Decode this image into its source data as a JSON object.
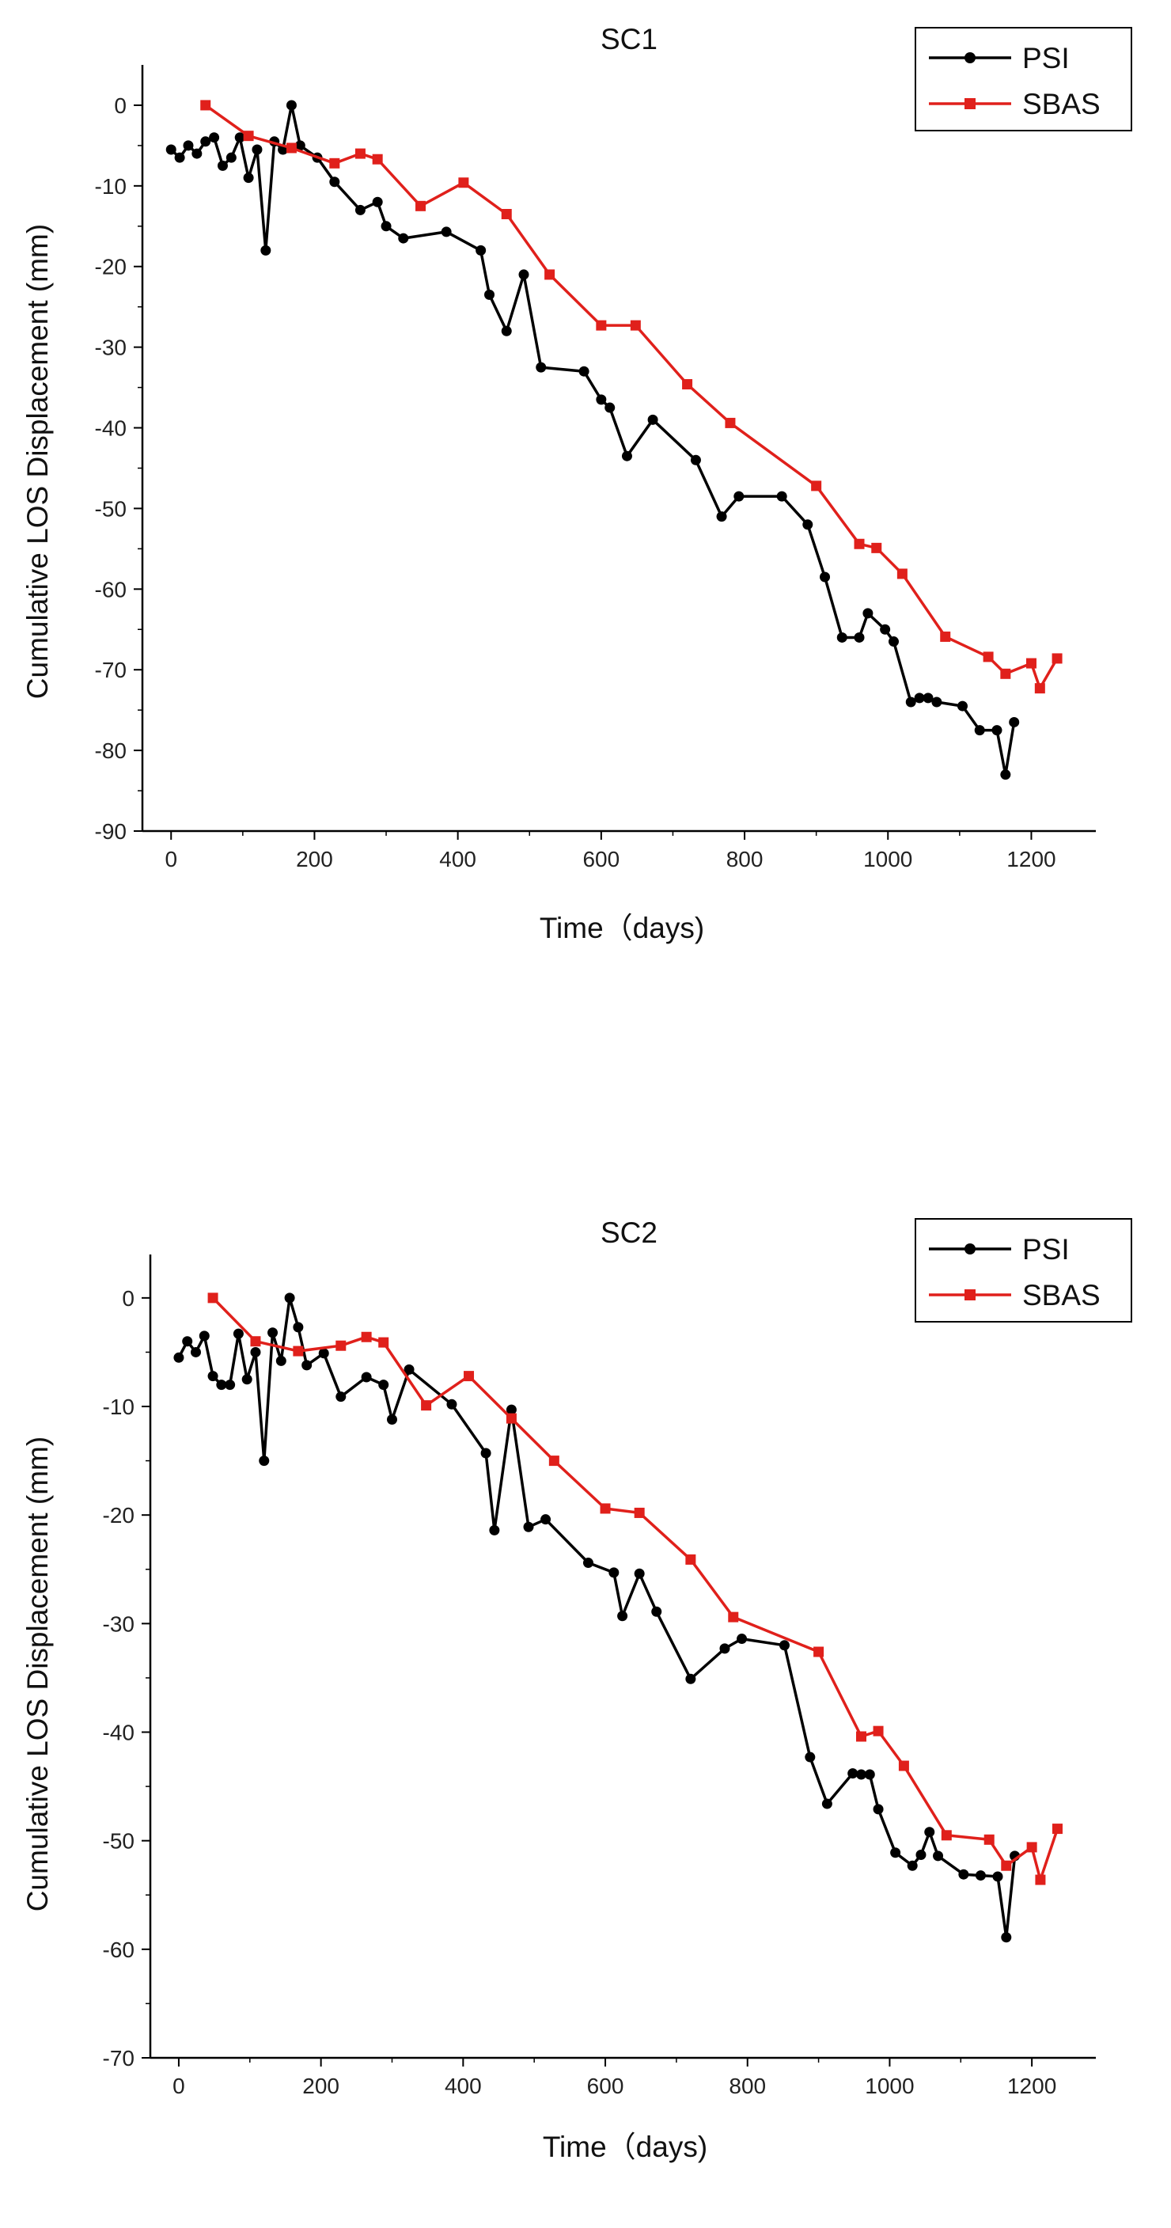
{
  "chart_data": [
    {
      "type": "line",
      "title": "SC1",
      "xlabel": "Time（days)",
      "ylabel": "Cumulative LOS Displacement (mm)",
      "xlim": [
        -40,
        1290
      ],
      "ylim": [
        -90,
        5
      ],
      "xticks": [
        0,
        200,
        400,
        600,
        800,
        1000,
        1200
      ],
      "yticks": [
        0,
        -10,
        -20,
        -30,
        -40,
        -50,
        -60,
        -70,
        -80,
        -90
      ],
      "legend_position": "top-right",
      "series": [
        {
          "name": "PSI",
          "color": "#000000",
          "marker": "circle",
          "x": [
            0,
            12,
            24,
            36,
            48,
            60,
            72,
            84,
            96,
            108,
            120,
            132,
            144,
            156,
            168,
            180,
            204,
            228,
            264,
            288,
            300,
            324,
            384,
            432,
            444,
            468,
            492,
            516,
            576,
            600,
            612,
            636,
            672,
            732,
            768,
            792,
            852,
            888,
            912,
            936,
            960,
            972,
            996,
            1008,
            1032,
            1044,
            1056,
            1068,
            1104,
            1128,
            1152,
            1164,
            1176
          ],
          "y": [
            -5.5,
            -6.5,
            -5,
            -6,
            -4.5,
            -4,
            -7.5,
            -6.5,
            -4,
            -9,
            -5.5,
            -18,
            -4.5,
            -5.5,
            0,
            -5,
            -6.5,
            -9.5,
            -13,
            -12,
            -15,
            -16.5,
            -15.7,
            -18,
            -23.5,
            -28,
            -21,
            -32.5,
            -33,
            -36.5,
            -37.5,
            -43.5,
            -39,
            -44,
            -51,
            -48.5,
            -48.5,
            -52,
            -58.5,
            -66,
            -66,
            -63,
            -65,
            -66.5,
            -74,
            -73.5,
            -73.5,
            -74,
            -74.5,
            -77.5,
            -77.5,
            -83,
            -76.5
          ]
        },
        {
          "name": "SBAS",
          "color": "#e0201b",
          "marker": "square",
          "x": [
            48,
            108,
            168,
            228,
            264,
            288,
            348,
            408,
            468,
            528,
            600,
            648,
            720,
            780,
            900,
            960,
            984,
            1020,
            1080,
            1140,
            1164,
            1200,
            1212,
            1236
          ],
          "y": [
            0,
            -3.8,
            -5.3,
            -7.2,
            -6,
            -6.7,
            -12.5,
            -9.6,
            -13.5,
            -21,
            -27.3,
            -27.3,
            -34.6,
            -39.4,
            -47.2,
            -54.4,
            -54.9,
            -58.1,
            -65.9,
            -68.4,
            -70.5,
            -69.2,
            -72.3,
            -68.6
          ]
        }
      ]
    },
    {
      "type": "line",
      "title": "SC2",
      "xlabel": "Time（days)",
      "ylabel": "Cumulative LOS Displacement (mm)",
      "xlim": [
        -40,
        1290
      ],
      "ylim": [
        -70,
        4
      ],
      "xticks": [
        0,
        200,
        400,
        600,
        800,
        1000,
        1200
      ],
      "yticks": [
        0,
        -10,
        -20,
        -30,
        -40,
        -50,
        -60,
        -70
      ],
      "legend_position": "top-right",
      "series": [
        {
          "name": "PSI",
          "color": "#000000",
          "marker": "circle",
          "x": [
            0,
            12,
            24,
            36,
            48,
            60,
            72,
            84,
            96,
            108,
            120,
            132,
            144,
            156,
            168,
            180,
            204,
            228,
            264,
            288,
            300,
            324,
            384,
            432,
            444,
            468,
            492,
            516,
            576,
            612,
            624,
            648,
            672,
            720,
            768,
            792,
            852,
            888,
            912,
            948,
            960,
            972,
            984,
            1008,
            1032,
            1044,
            1056,
            1068,
            1104,
            1128,
            1152,
            1164,
            1176
          ],
          "y": [
            -5.5,
            -4,
            -5,
            -3.5,
            -7.2,
            -8,
            -8,
            -3.3,
            -7.5,
            -5,
            -15,
            -3.2,
            -5.8,
            0,
            -2.7,
            -6.2,
            -5.1,
            -9.1,
            -7.3,
            -8,
            -11.2,
            -6.6,
            -9.8,
            -14.3,
            -21.4,
            -10.3,
            -21.1,
            -20.4,
            -24.4,
            -25.3,
            -29.3,
            -25.4,
            -28.9,
            -35.1,
            -32.3,
            -31.4,
            -32,
            -42.3,
            -46.6,
            -43.8,
            -43.9,
            -43.9,
            -47.1,
            -51.1,
            -52.3,
            -51.3,
            -49.2,
            -51.4,
            -53.1,
            -53.2,
            -53.3,
            -58.9,
            -51.4
          ]
        },
        {
          "name": "SBAS",
          "color": "#e0201b",
          "marker": "square",
          "x": [
            48,
            108,
            168,
            228,
            264,
            288,
            348,
            408,
            468,
            528,
            600,
            648,
            720,
            780,
            900,
            960,
            984,
            1020,
            1080,
            1140,
            1164,
            1200,
            1212,
            1236
          ],
          "y": [
            0,
            -4,
            -4.9,
            -4.4,
            -3.6,
            -4.1,
            -9.9,
            -7.2,
            -11.1,
            -15,
            -19.4,
            -19.8,
            -24.1,
            -29.4,
            -32.6,
            -40.4,
            -39.9,
            -43.1,
            -49.5,
            -49.9,
            -52.3,
            -50.6,
            -53.6,
            -48.9
          ]
        }
      ]
    }
  ]
}
